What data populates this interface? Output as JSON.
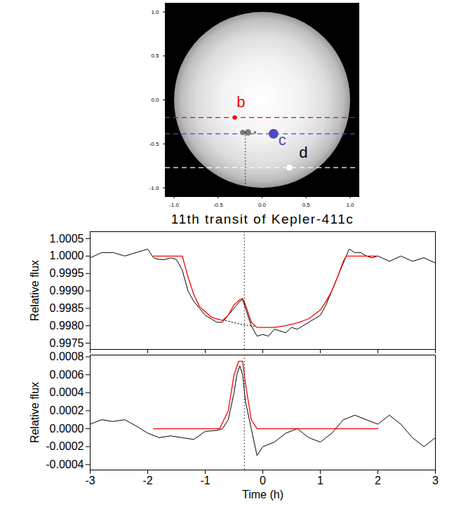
{
  "chart_data": [
    {
      "type": "star_disk",
      "xlim": [
        -1.1,
        1.1
      ],
      "ylim": [
        -1.1,
        1.1
      ],
      "xticks": [
        {
          "value": -1,
          "label": "-1.0"
        },
        -0.5,
        {
          "value": 0,
          "label": "0.0"
        },
        0.5,
        {
          "value": 1,
          "label": "1.0"
        }
      ],
      "yticks": [
        {
          "value": -1,
          "label": "-1.0"
        },
        -0.5,
        {
          "value": 0,
          "label": "0.0"
        },
        0.5,
        {
          "value": 1,
          "label": "1.0"
        }
      ],
      "star": {
        "x": 0,
        "y": 0,
        "radius": 1
      },
      "planets": [
        {
          "name": "b",
          "color": "#ff0000",
          "line_style": "dashed",
          "x": -0.31,
          "y": -0.2,
          "radius": 0.025,
          "label_x": -0.24,
          "label_y": -0.03
        },
        {
          "name": "c",
          "color": "#4b4bc0",
          "line_style": "dashed",
          "x": 0.13,
          "y": -0.385,
          "radius": 0.055,
          "label_x": 0.23,
          "label_y": -0.46
        },
        {
          "name": "d",
          "color": "#ffffff",
          "line_style": "dashed",
          "x": 0.31,
          "y": -0.77,
          "radius": 0.035,
          "label_x": 0.47,
          "label_y": -0.6
        }
      ],
      "spots": [
        {
          "x": -0.22,
          "y": -0.37,
          "radius": 0.03
        },
        {
          "x": -0.16,
          "y": -0.37,
          "radius": 0.037
        },
        {
          "x": -0.08,
          "y": -0.37,
          "radius": 0.015
        }
      ],
      "vertical_line": {
        "x": -0.19,
        "y": -0.37,
        "line_style": "dotted"
      }
    },
    {
      "type": "line",
      "title": "11th transit of Kepler-411c",
      "y_label": "Relative flux",
      "xlim": [
        -3,
        3
      ],
      "ylim": [
        0.99732,
        1.0007
      ],
      "xticks": [
        -3,
        -2,
        -1,
        0,
        1,
        2,
        3
      ],
      "yticks": [
        1.0005,
        {
          "value": 1,
          "label": "1.0000"
        },
        0.9995,
        {
          "value": 0.999,
          "label": "0.9990"
        },
        0.9985,
        {
          "value": 0.998,
          "label": "0.9980"
        },
        0.9975
      ],
      "tick_labels": "y",
      "series": [
        {
          "color": "black",
          "line_style": "solid",
          "x": [
            -3,
            -2.8,
            -2.6,
            -2.4,
            -2.2,
            -2,
            -1.9,
            -1.8,
            -1.7,
            -1.6,
            -1.5,
            -1.4,
            -1.3,
            -1.2,
            -1.1,
            -1,
            -0.9,
            -0.8,
            -0.7,
            -0.6,
            -0.5,
            -0.4,
            -0.35,
            -0.3,
            -0.2,
            -0.1,
            0,
            0.1,
            0.2,
            0.3,
            0.4,
            0.5,
            0.6,
            0.7,
            0.8,
            0.9,
            1,
            1.1,
            1.2,
            1.3,
            1.4,
            1.5,
            1.6,
            1.7,
            1.8,
            1.9,
            2,
            2.2,
            2.4,
            2.6,
            2.8,
            3
          ],
          "values": [
            0.99995,
            1.0001,
            1.0001,
            1,
            1.0001,
            1.0002,
            0.99995,
            0.9999,
            0.9999,
            0.99995,
            0.9999,
            0.9996,
            0.999,
            0.9987,
            0.9985,
            0.9983,
            0.9982,
            0.9981,
            0.9981,
            0.9983,
            0.9985,
            0.9987,
            0.99875,
            0.9985,
            0.998,
            0.9977,
            0.99775,
            0.9977,
            0.9979,
            0.99785,
            0.9978,
            0.99795,
            0.9979,
            0.998,
            0.9981,
            0.9982,
            0.9983,
            0.9986,
            0.999,
            0.9994,
            0.9998,
            1.0002,
            1.0001,
            1.0001,
            1,
            0.99995,
            1,
            0.99985,
            1,
            0.99985,
            0.99995,
            0.9998
          ]
        },
        {
          "color": "#ff0000",
          "line_style": "solid",
          "x": [
            -1.9,
            -1.4,
            -1.3,
            -1.2,
            -1.1,
            -1,
            -0.9,
            -0.8,
            -0.7,
            -0.6,
            -0.5,
            -0.4,
            -0.35,
            -0.3,
            -0.2,
            -0.1,
            0,
            0.2,
            0.4,
            0.6,
            0.8,
            1,
            1.1,
            1.2,
            1.3,
            1.4,
            1.45,
            2
          ],
          "values": [
            1,
            1,
            0.9994,
            0.9989,
            0.99855,
            0.9984,
            0.99825,
            0.9982,
            0.99815,
            0.9983,
            0.9986,
            0.99875,
            0.99878,
            0.9986,
            0.9981,
            0.99795,
            0.99795,
            0.99795,
            0.998,
            0.99808,
            0.9982,
            0.99845,
            0.9987,
            0.999,
            0.9994,
            0.99985,
            1,
            1
          ]
        },
        {
          "color": "black",
          "line_style": "dotted",
          "x": [
            -0.65,
            -0.4,
            -0.15
          ],
          "values": [
            0.99815,
            0.99805,
            0.99798
          ]
        }
      ],
      "vertical_line": {
        "x": -0.32,
        "line_style": "dotted"
      }
    },
    {
      "type": "line",
      "x_label": "Time (h)",
      "y_label": "Relative flux",
      "xlim": [
        -3,
        3
      ],
      "ylim": [
        -0.00046,
        0.00082
      ],
      "xticks": [
        -3,
        -2,
        -1,
        0,
        1,
        2,
        3
      ],
      "yticks": [
        0.0008,
        0.0006,
        0.0004,
        0.0002,
        {
          "value": 0,
          "label": "0.0000"
        },
        -0.0002,
        -0.0004
      ],
      "series": [
        {
          "color": "black",
          "line_style": "solid",
          "x": [
            -3,
            -2.8,
            -2.6,
            -2.4,
            -2.2,
            -2,
            -1.8,
            -1.6,
            -1.4,
            -1.2,
            -1,
            -0.8,
            -0.7,
            -0.6,
            -0.5,
            -0.45,
            -0.4,
            -0.35,
            -0.3,
            -0.2,
            -0.1,
            0,
            0.2,
            0.4,
            0.6,
            0.8,
            1,
            1.2,
            1.4,
            1.6,
            1.8,
            2,
            2.2,
            2.4,
            2.6,
            2.8,
            3
          ],
          "values": [
            5e-05,
            0.0001,
            8e-05,
            0.0001,
            3e-05,
            -5e-05,
            -0.0001,
            -8e-05,
            -0.0001,
            -0.00012,
            -3e-05,
            -2e-05,
            0,
            0.0001,
            0.0004,
            0.0006,
            0.0007,
            0.0006,
            0.0003,
            0,
            -0.0003,
            -0.0002,
            -0.00015,
            -5e-05,
            0,
            -0.0001,
            -0.00015,
            -5e-05,
            0.0001,
            0.00015,
            0.0001,
            5e-05,
            0.00015,
            5e-05,
            -0.0001,
            -0.0002,
            -0.0001
          ]
        },
        {
          "color": "#ff0000",
          "line_style": "solid",
          "x": [
            -1.9,
            -0.75,
            -0.6,
            -0.5,
            -0.42,
            -0.35,
            -0.3,
            -0.2,
            -0.1,
            2
          ],
          "values": [
            0,
            0,
            0.0002,
            0.0006,
            0.00075,
            0.00075,
            0.0005,
            0.0001,
            0,
            0
          ]
        }
      ],
      "vertical_line": {
        "x": -0.32,
        "line_style": "dotted"
      }
    }
  ]
}
